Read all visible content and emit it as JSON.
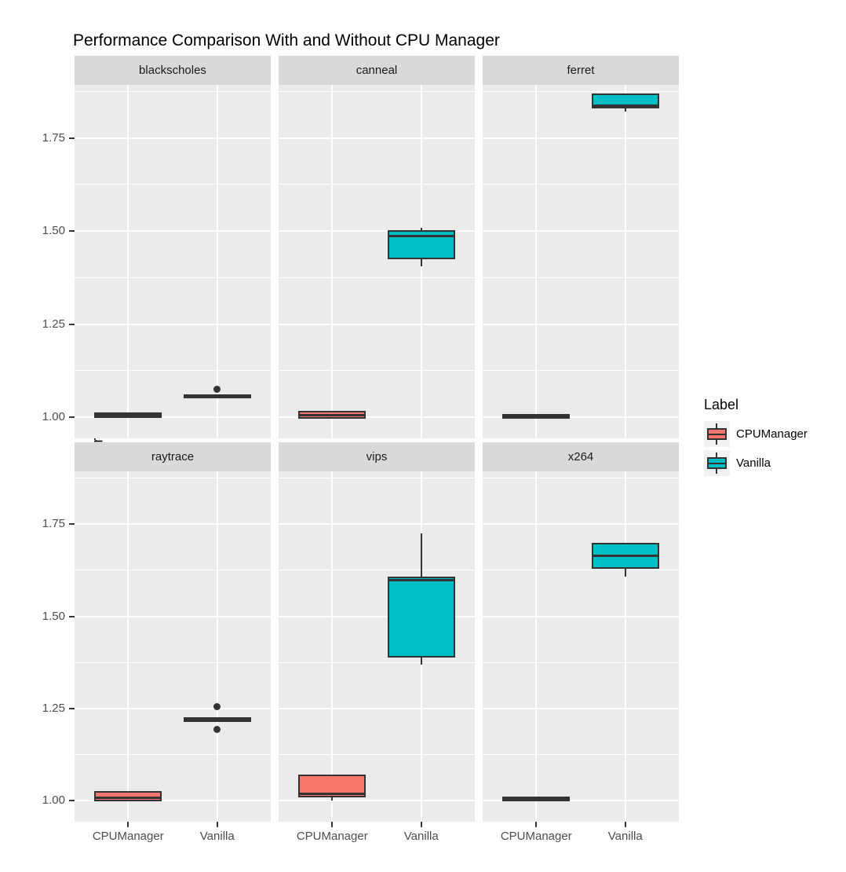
{
  "title": "Performance Comparison With and Without CPU Manager",
  "y_axis": {
    "label": "Normalized Execution Time",
    "tick_labels": [
      "1.00",
      "1.25",
      "1.50",
      "1.75"
    ]
  },
  "x_axis": {
    "tick_labels": [
      "CPUManager",
      "Vanilla"
    ]
  },
  "legend": {
    "title": "Label",
    "items": [
      {
        "label": "CPUManager",
        "color": "#F8766D"
      },
      {
        "label": "Vanilla",
        "color": "#00BFC4"
      }
    ]
  },
  "style_colors": {
    "panel_background": "#EBEBEB",
    "strip_background": "#D9D9D9",
    "gridline": "#FFFFFF",
    "box_stroke": "#333333",
    "outlier": "#333333",
    "axis_text": "#4D4D4D"
  },
  "chart_data": {
    "type": "boxplot",
    "title": "Performance Comparison With and Without CPU Manager",
    "ylabel": "Normalized Execution Time",
    "xlabel": "",
    "faceted_by": "benchmark",
    "facet_layout": [
      [
        "blackscholes",
        "canneal",
        "ferret"
      ],
      [
        "raytrace",
        "vips",
        "x264"
      ]
    ],
    "x_categories": [
      "CPUManager",
      "Vanilla"
    ],
    "ylim": [
      0.943,
      1.893
    ],
    "y_major_ticks": [
      1.0,
      1.25,
      1.5,
      1.75
    ],
    "y_minor_ticks": [
      1.125,
      1.375,
      1.625,
      1.875
    ],
    "legend_position": "right",
    "grid": true,
    "facets": [
      {
        "name": "blackscholes",
        "boxes": [
          {
            "group": "CPUManager",
            "color": "#F8766D",
            "low": 1.0,
            "q1": 1.003,
            "median": 1.005,
            "q3": 1.008,
            "high": 1.01,
            "outliers": []
          },
          {
            "group": "Vanilla",
            "color": "#00BFC4",
            "low": 1.052,
            "q1": 1.054,
            "median": 1.056,
            "q3": 1.058,
            "high": 1.06,
            "outliers": [
              1.075
            ]
          }
        ]
      },
      {
        "name": "canneal",
        "boxes": [
          {
            "group": "CPUManager",
            "color": "#F8766D",
            "low": 0.999,
            "q1": 1.0,
            "median": 1.006,
            "q3": 1.012,
            "high": 1.014,
            "outliers": []
          },
          {
            "group": "Vanilla",
            "color": "#00BFC4",
            "low": 1.405,
            "q1": 1.428,
            "median": 1.487,
            "q3": 1.499,
            "high": 1.509,
            "outliers": []
          }
        ]
      },
      {
        "name": "ferret",
        "boxes": [
          {
            "group": "CPUManager",
            "color": "#F8766D",
            "low": 1.0,
            "q1": 1.001,
            "median": 1.002,
            "q3": 1.004,
            "high": 1.005,
            "outliers": []
          },
          {
            "group": "Vanilla",
            "color": "#00BFC4",
            "low": 1.822,
            "q1": 1.833,
            "median": 1.837,
            "q3": 1.866,
            "high": 1.868,
            "outliers": []
          }
        ]
      },
      {
        "name": "raytrace",
        "boxes": [
          {
            "group": "CPUManager",
            "color": "#F8766D",
            "low": 1.0,
            "q1": 1.002,
            "median": 1.007,
            "q3": 1.021,
            "high": 1.023,
            "outliers": []
          },
          {
            "group": "Vanilla",
            "color": "#00BFC4",
            "low": 1.217,
            "q1": 1.218,
            "median": 1.22,
            "q3": 1.222,
            "high": 1.223,
            "outliers": [
              1.256,
              1.193
            ]
          }
        ]
      },
      {
        "name": "vips",
        "boxes": [
          {
            "group": "CPUManager",
            "color": "#F8766D",
            "low": 1.001,
            "q1": 1.013,
            "median": 1.019,
            "q3": 1.066,
            "high": 1.071,
            "outliers": []
          },
          {
            "group": "Vanilla",
            "color": "#00BFC4",
            "low": 1.368,
            "q1": 1.392,
            "median": 1.597,
            "q3": 1.604,
            "high": 1.724,
            "outliers": []
          }
        ]
      },
      {
        "name": "x264",
        "boxes": [
          {
            "group": "CPUManager",
            "color": "#F8766D",
            "low": 1.0,
            "q1": 1.002,
            "median": 1.004,
            "q3": 1.006,
            "high": 1.008,
            "outliers": []
          },
          {
            "group": "Vanilla",
            "color": "#00BFC4",
            "low": 1.607,
            "q1": 1.634,
            "median": 1.665,
            "q3": 1.694,
            "high": 1.696,
            "outliers": []
          }
        ]
      }
    ]
  }
}
